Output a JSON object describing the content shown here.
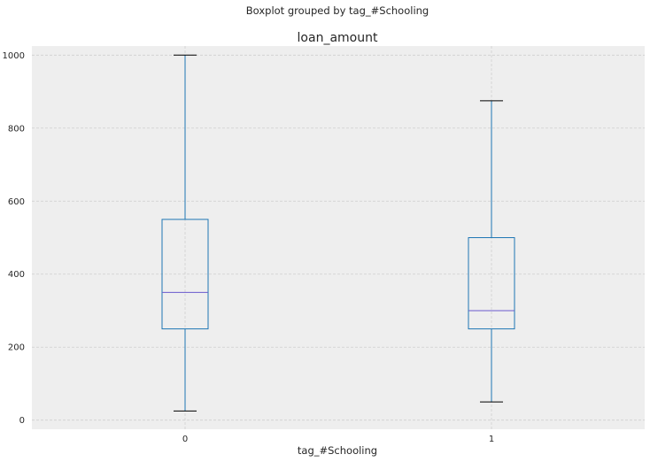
{
  "chart_data": {
    "type": "boxplot",
    "suptitle": "Boxplot grouped by tag_#Schooling",
    "title": "loan_amount",
    "xlabel": "tag_#Schooling",
    "ylabel": "",
    "categories": [
      "0",
      "1"
    ],
    "yticks": [
      0,
      200,
      400,
      600,
      800,
      1000
    ],
    "ylim": [
      -25,
      1025
    ],
    "grid": true,
    "boxes": [
      {
        "category": "0",
        "whisker_low": 25,
        "q1": 250,
        "median": 350,
        "q3": 550,
        "whisker_high": 1000
      },
      {
        "category": "1",
        "whisker_low": 50,
        "q1": 250,
        "median": 300,
        "q3": 500,
        "whisker_high": 875
      }
    ],
    "colors": {
      "background": "#eeeeee",
      "grid": "#cfcfcf",
      "box": "#1f77b4",
      "median": "#6a5acd",
      "caps": "#000000"
    }
  }
}
